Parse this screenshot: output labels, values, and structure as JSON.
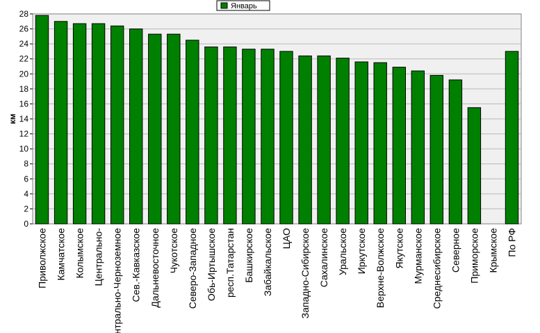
{
  "chart_data": {
    "type": "bar",
    "title": "",
    "xlabel": "",
    "ylabel": "км",
    "ylim": [
      0,
      28
    ],
    "ytick_step": 2,
    "grid": true,
    "legend_position": "top-center",
    "categories": [
      "Приволжское",
      "Камчатское",
      "Колымское",
      "Центрально-",
      "Центрально-Черноземное",
      "Сев.-Кавказское",
      "Дальневосточное",
      "Чукотское",
      "Северо-Западное",
      "Обь-Иртышское",
      "респ.Татарстан",
      "Башкирское",
      "Забайкальское",
      "ЦАО",
      "Западно-Сибирское",
      "Сахалинское",
      "Уральское",
      "Иркутское",
      "Верхне-Волжское",
      "Якутское",
      "Мурманское",
      "Среднесибирское",
      "Северное",
      "Приморское",
      "Крымское",
      "По РФ"
    ],
    "series": [
      {
        "name": "Январь",
        "color": "#008000",
        "values": [
          27.8,
          27.0,
          26.7,
          26.7,
          26.4,
          26.0,
          25.3,
          25.3,
          24.5,
          23.6,
          23.6,
          23.3,
          23.3,
          23.0,
          22.4,
          22.4,
          22.1,
          21.6,
          21.5,
          20.9,
          20.4,
          19.8,
          19.2,
          15.5,
          0,
          23.0
        ]
      }
    ]
  }
}
